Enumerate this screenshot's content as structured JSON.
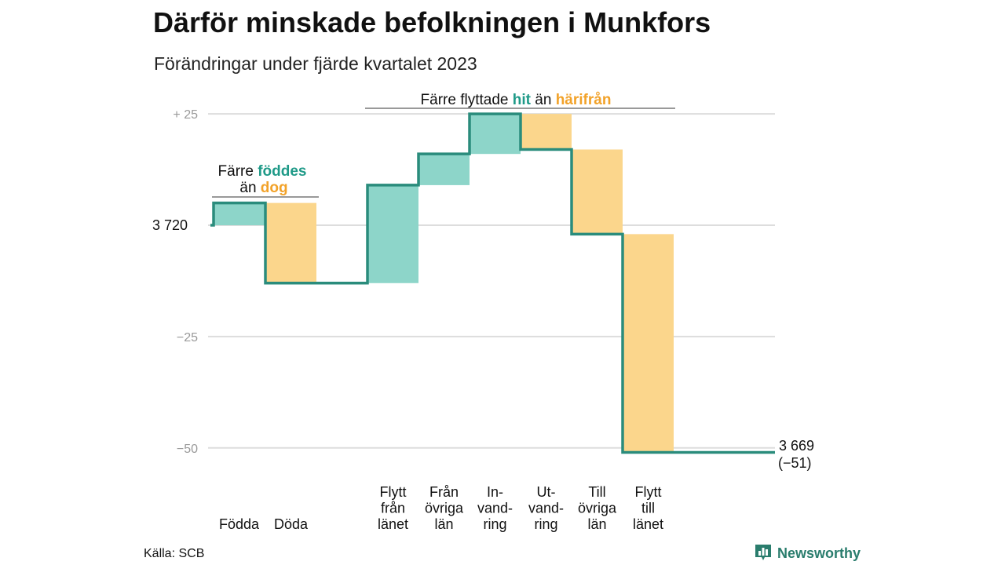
{
  "chart_data": {
    "type": "waterfall",
    "title": "Därför minskade befolkningen i Munkfors",
    "subtitle": "Förändringar under fjärde kvartalet 2023",
    "start_label": "3 720",
    "end_label": "3 669",
    "end_change_label": "(−51)",
    "y_ticks": [
      {
        "value": 25,
        "label": "+  25"
      },
      {
        "value": -25,
        "label": "−25"
      },
      {
        "value": -50,
        "label": "−50"
      }
    ],
    "ylim": [
      -51,
      25
    ],
    "grid": true,
    "steps": [
      {
        "category": [
          "Födda"
        ],
        "value": 5,
        "kind": "inflow"
      },
      {
        "category": [
          "Döda"
        ],
        "value": -18,
        "kind": "outflow"
      },
      {
        "category": [
          "Flytt",
          "från",
          "länet"
        ],
        "value": 22,
        "kind": "inflow"
      },
      {
        "category": [
          "Från",
          "övriga",
          "län"
        ],
        "value": 7,
        "kind": "inflow"
      },
      {
        "category": [
          "In-",
          "vand-",
          "ring"
        ],
        "value": 9,
        "kind": "inflow"
      },
      {
        "category": [
          "Ut-",
          "vand-",
          "ring"
        ],
        "value": -8,
        "kind": "outflow"
      },
      {
        "category": [
          "Till",
          "övriga",
          "län"
        ],
        "value": -19,
        "kind": "outflow"
      },
      {
        "category": [
          "Flytt",
          "till",
          "länet"
        ],
        "value": -49,
        "kind": "outflow"
      }
    ],
    "colors": {
      "inflow": "#8dd5c9",
      "outflow": "#fbd68c",
      "line": "#2a8c7c",
      "grid": "#dddddd",
      "accent_in": "#1f9a88",
      "accent_out": "#f2a229"
    },
    "annotations": {
      "births": {
        "line1_prefix": "Färre ",
        "line1_highlight": "föddes",
        "line2_prefix": "än ",
        "line2_highlight": "dog"
      },
      "moves": {
        "prefix": "Färre flyttade ",
        "highlight_in": "hit",
        "middle": " än ",
        "highlight_out": "härifrån"
      }
    }
  },
  "footer": {
    "source": "Källa: SCB",
    "brand": "Newsworthy",
    "brand_icon": "bar-chart-icon"
  }
}
